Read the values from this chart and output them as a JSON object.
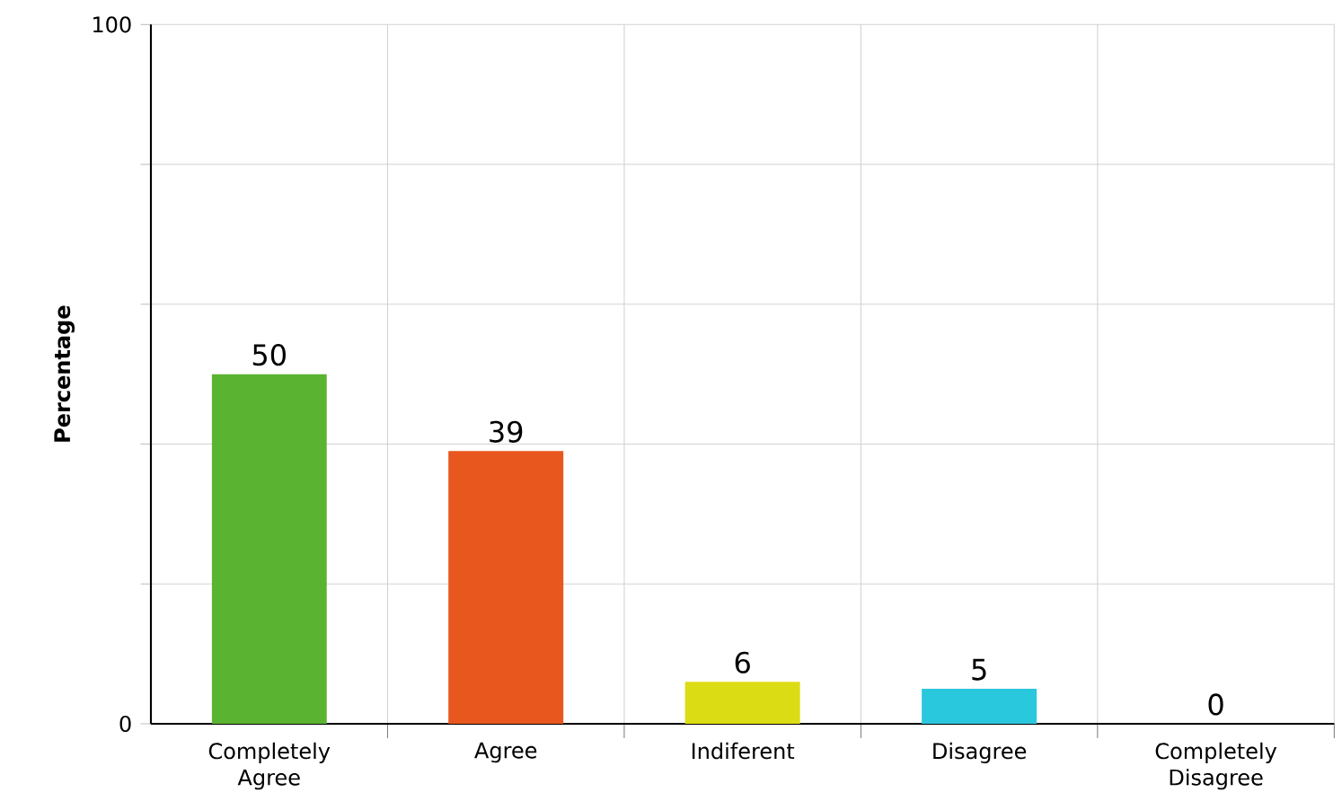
{
  "chart_data": {
    "type": "bar",
    "ylabel": "Percentage",
    "categories": [
      "Completely Agree",
      "Agree",
      "Indiferent",
      "Disagree",
      "Completely Disagree"
    ],
    "values": [
      50,
      39,
      6,
      5,
      0
    ],
    "colors": [
      "#5ab432",
      "#e8571e",
      "#dcdc14",
      "#2ac8dc",
      "#999999"
    ],
    "ylim": [
      0,
      100
    ],
    "yticks": [
      0,
      {
        "value": 20,
        "label": null
      },
      {
        "value": 40,
        "label": null
      },
      {
        "value": 60,
        "label": null
      },
      {
        "value": 80,
        "label": null
      },
      100
    ],
    "grid": true,
    "data_labels": true
  }
}
